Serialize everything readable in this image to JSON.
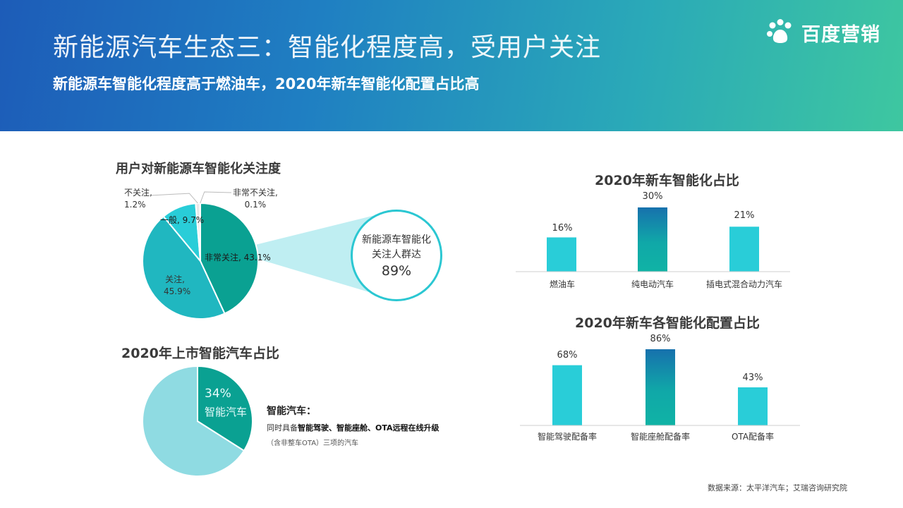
{
  "header": {
    "title": "新能源汽车生态三：智能化程度高，受用户关注",
    "subtitle": "新能源车智能化程度高于燃油车，2020年新车智能化配置占比高",
    "logo_text": "百度营销",
    "logo_icon": "baidu-paw-icon"
  },
  "colors": {
    "teal_dark": "#0aa192",
    "teal_mid": "#20b7c0",
    "cyan": "#29cdd8",
    "light_cyan": "#8fdbe2",
    "callout_fill": "#bfeef2",
    "bar_gradient_top": "#1771ad",
    "bar_gradient_bottom": "#10b3a5"
  },
  "callout": {
    "line1": "新能源车智能化",
    "line2": "关注人群达",
    "value": "89%"
  },
  "note": {
    "title": "智能汽车：",
    "line1_prefix": "同时具备",
    "line1_bold": "智能驾驶、智能座舱、OTA远程在线升级",
    "line2": "（含非整车OTA）三项的汽车"
  },
  "source": "数据来源：太平洋汽车；艾瑞咨询研究院",
  "chart_data": [
    {
      "type": "pie",
      "title": "用户对新能源车智能化关注度",
      "slices": [
        {
          "label": "非常关注",
          "value": 43.1,
          "label_text": "非常关注, 43.1%"
        },
        {
          "label": "关注",
          "value": 45.9,
          "label_text_1": "关注,",
          "label_text_2": "45.9%"
        },
        {
          "label": "一般",
          "value": 9.7,
          "label_text": "一般, 9.7%"
        },
        {
          "label": "不关注",
          "value": 1.2,
          "label_text_1": "不关注,",
          "label_text_2": "1.2%"
        },
        {
          "label": "非常不关注",
          "value": 0.1,
          "label_text_1": "非常不关注,",
          "label_text_2": "0.1%"
        }
      ],
      "unit": "%"
    },
    {
      "type": "pie",
      "title": "2020年上市智能汽车占比",
      "slices": [
        {
          "label": "智能汽车",
          "value": 34,
          "label_text": "34%"
        },
        {
          "label": "",
          "value": 66
        }
      ],
      "unit": "%"
    },
    {
      "type": "bar",
      "title": "2020年新车智能化占比",
      "categories": [
        "燃油车",
        "纯电动汽车",
        "插电式混合动力汽车"
      ],
      "values": [
        16,
        30,
        21
      ],
      "value_labels": [
        "16%",
        "30%",
        "21%"
      ],
      "highlight_index": 1,
      "unit": "%"
    },
    {
      "type": "bar",
      "title": "2020年新车各智能化配置占比",
      "categories": [
        "智能驾驶配备率",
        "智能座舱配备率",
        "OTA配备率"
      ],
      "values": [
        68,
        86,
        43
      ],
      "value_labels": [
        "68%",
        "86%",
        "43%"
      ],
      "highlight_index": 1,
      "unit": "%"
    }
  ]
}
